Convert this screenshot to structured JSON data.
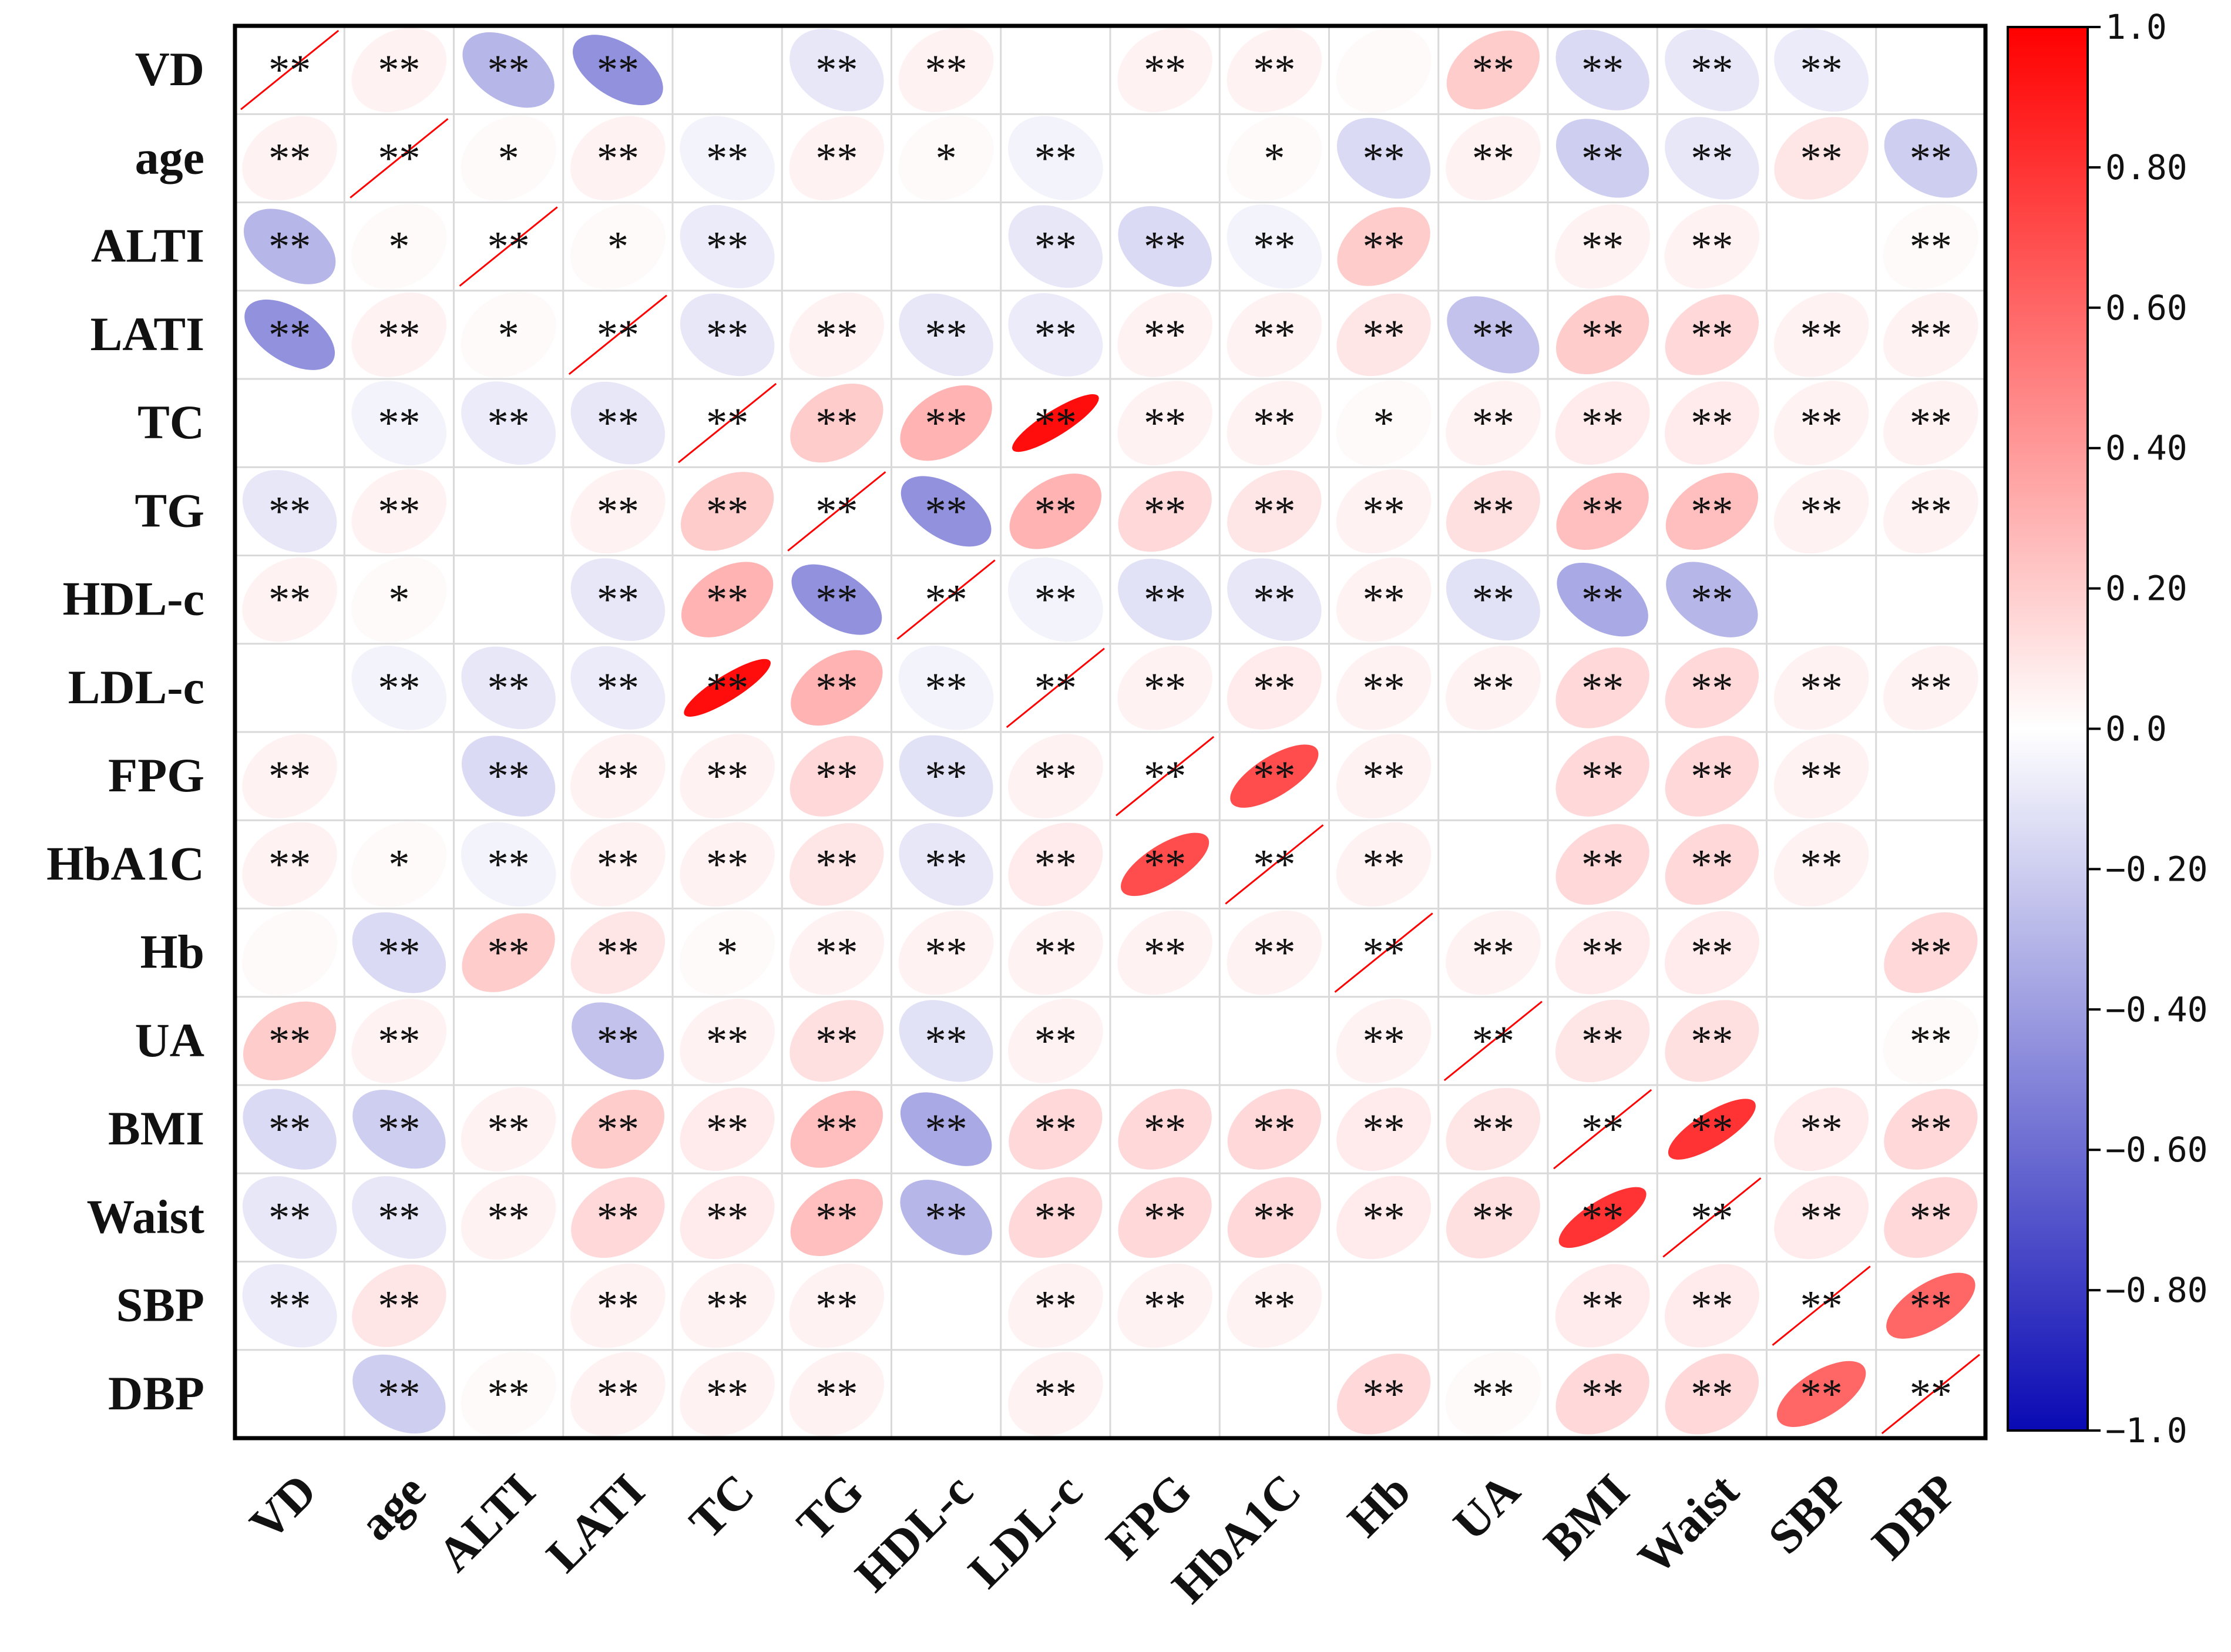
{
  "chart_data": {
    "type": "heatmap",
    "title": "",
    "variables": [
      "VD",
      "age",
      "ALTI",
      "LATI",
      "TC",
      "TG",
      "HDL-c",
      "LDL-c",
      "FPG",
      "HbA1C",
      "Hb",
      "UA",
      "BMI",
      "Waist",
      "SBP",
      "DBP"
    ],
    "matrix": [
      [
        1.0,
        0.05,
        -0.3,
        -0.45,
        0.0,
        -0.1,
        0.05,
        0.0,
        0.05,
        0.05,
        0.02,
        0.2,
        -0.15,
        -0.1,
        -0.08,
        0.0
      ],
      [
        0.05,
        1.0,
        0.02,
        0.05,
        -0.05,
        0.05,
        0.02,
        -0.05,
        0.0,
        0.02,
        -0.15,
        0.05,
        -0.2,
        -0.1,
        0.1,
        -0.2
      ],
      [
        -0.3,
        0.02,
        1.0,
        0.02,
        -0.08,
        0.0,
        0.0,
        -0.1,
        -0.15,
        -0.05,
        0.2,
        0.0,
        0.05,
        0.05,
        0.0,
        0.02
      ],
      [
        -0.45,
        0.05,
        0.02,
        1.0,
        -0.1,
        0.05,
        -0.1,
        -0.08,
        0.05,
        0.05,
        0.1,
        -0.25,
        0.2,
        0.15,
        0.05,
        0.05
      ],
      [
        0.0,
        -0.05,
        -0.08,
        -0.1,
        1.0,
        0.2,
        0.3,
        0.95,
        0.05,
        0.05,
        0.02,
        0.05,
        0.08,
        0.08,
        0.05,
        0.05
      ],
      [
        -0.1,
        0.05,
        0.0,
        0.05,
        0.2,
        1.0,
        -0.45,
        0.3,
        0.15,
        0.1,
        0.05,
        0.12,
        0.25,
        0.25,
        0.05,
        0.05
      ],
      [
        0.05,
        0.02,
        0.0,
        -0.1,
        0.3,
        -0.45,
        1.0,
        -0.05,
        -0.12,
        -0.1,
        0.05,
        -0.12,
        -0.35,
        -0.3,
        0.0,
        0.0
      ],
      [
        0.0,
        -0.05,
        -0.1,
        -0.08,
        0.95,
        0.3,
        -0.05,
        1.0,
        0.05,
        0.08,
        0.05,
        0.05,
        0.15,
        0.15,
        0.05,
        0.05
      ],
      [
        0.05,
        0.0,
        -0.15,
        0.05,
        0.05,
        0.15,
        -0.12,
        0.05,
        1.0,
        0.7,
        0.05,
        0.0,
        0.15,
        0.15,
        0.05,
        0.0
      ],
      [
        0.05,
        0.02,
        -0.05,
        0.05,
        0.05,
        0.1,
        -0.1,
        0.08,
        0.7,
        1.0,
        0.05,
        0.0,
        0.15,
        0.15,
        0.05,
        0.0
      ],
      [
        0.02,
        -0.15,
        0.2,
        0.1,
        0.02,
        0.05,
        0.05,
        0.05,
        0.05,
        0.05,
        1.0,
        0.05,
        0.08,
        0.08,
        0.0,
        0.15
      ],
      [
        0.2,
        0.05,
        0.0,
        -0.25,
        0.05,
        0.12,
        -0.12,
        0.05,
        0.0,
        0.0,
        0.05,
        1.0,
        0.1,
        0.12,
        0.0,
        0.02
      ],
      [
        -0.15,
        -0.2,
        0.05,
        0.2,
        0.08,
        0.25,
        -0.35,
        0.15,
        0.15,
        0.15,
        0.08,
        0.1,
        1.0,
        0.8,
        0.08,
        0.15
      ],
      [
        -0.1,
        -0.1,
        0.05,
        0.15,
        0.08,
        0.25,
        -0.3,
        0.15,
        0.15,
        0.15,
        0.08,
        0.12,
        0.8,
        1.0,
        0.08,
        0.15
      ],
      [
        -0.08,
        0.1,
        0.0,
        0.05,
        0.05,
        0.05,
        0.0,
        0.05,
        0.05,
        0.05,
        0.0,
        0.0,
        0.08,
        0.08,
        1.0,
        0.6
      ],
      [
        0.0,
        -0.2,
        0.02,
        0.05,
        0.05,
        0.05,
        0.0,
        0.05,
        0.0,
        0.0,
        0.15,
        0.02,
        0.15,
        0.15,
        0.6,
        1.0
      ]
    ],
    "significance": [
      [
        "**",
        "**",
        "**",
        "**",
        "",
        "**",
        "**",
        "",
        "**",
        "**",
        "",
        "**",
        "**",
        "**",
        "**",
        ""
      ],
      [
        "**",
        "**",
        "*",
        "**",
        "**",
        "**",
        "*",
        "**",
        "",
        "*",
        "**",
        "**",
        "**",
        "**",
        "**",
        "**"
      ],
      [
        "**",
        "*",
        "**",
        "*",
        "**",
        "",
        "",
        "**",
        "**",
        "**",
        "**",
        "",
        "**",
        "**",
        "",
        "**"
      ],
      [
        "**",
        "**",
        "*",
        "**",
        "**",
        "**",
        "**",
        "**",
        "**",
        "**",
        "**",
        "**",
        "**",
        "**",
        "**",
        "**"
      ],
      [
        "",
        "**",
        "**",
        "**",
        "**",
        "**",
        "**",
        "**",
        "**",
        "**",
        "*",
        "**",
        "**",
        "**",
        "**",
        "**"
      ],
      [
        "**",
        "**",
        "",
        "**",
        "**",
        "**",
        "**",
        "**",
        "**",
        "**",
        "**",
        "**",
        "**",
        "**",
        "**",
        "**"
      ],
      [
        "**",
        "*",
        "",
        "**",
        "**",
        "**",
        "**",
        "**",
        "**",
        "**",
        "**",
        "**",
        "**",
        "**",
        "",
        ""
      ],
      [
        "",
        "**",
        "**",
        "**",
        "**",
        "**",
        "**",
        "**",
        "**",
        "**",
        "**",
        "**",
        "**",
        "**",
        "**",
        "**"
      ],
      [
        "**",
        "",
        "**",
        "**",
        "**",
        "**",
        "**",
        "**",
        "**",
        "**",
        "**",
        "",
        "**",
        "**",
        "**",
        ""
      ],
      [
        "**",
        "*",
        "**",
        "**",
        "**",
        "**",
        "**",
        "**",
        "**",
        "**",
        "**",
        "",
        "**",
        "**",
        "**",
        ""
      ],
      [
        "",
        "**",
        "**",
        "**",
        "*",
        "**",
        "**",
        "**",
        "**",
        "**",
        "**",
        "**",
        "**",
        "**",
        "",
        "**"
      ],
      [
        "**",
        "**",
        "",
        "**",
        "**",
        "**",
        "**",
        "**",
        "",
        "",
        "**",
        "**",
        "**",
        "**",
        "",
        "**"
      ],
      [
        "**",
        "**",
        "**",
        "**",
        "**",
        "**",
        "**",
        "**",
        "**",
        "**",
        "**",
        "**",
        "**",
        "**",
        "**",
        "**"
      ],
      [
        "**",
        "**",
        "**",
        "**",
        "**",
        "**",
        "**",
        "**",
        "**",
        "**",
        "**",
        "**",
        "**",
        "**",
        "**",
        "**"
      ],
      [
        "**",
        "**",
        "",
        "**",
        "**",
        "**",
        "",
        "**",
        "**",
        "**",
        "",
        "",
        "**",
        "**",
        "**",
        "**"
      ],
      [
        "",
        "**",
        "**",
        "**",
        "**",
        "**",
        "",
        "**",
        "",
        "",
        "**",
        "**",
        "**",
        "**",
        "**",
        "**"
      ]
    ],
    "colorbar": {
      "range": [
        -1.0,
        1.0
      ],
      "ticks": [
        "1.0",
        "0.80",
        "0.60",
        "0.40",
        "0.20",
        "0.0",
        "−0.20",
        "−0.40",
        "−0.60",
        "−0.80",
        "−1.0"
      ],
      "low_color": "#0a0ab4",
      "mid_color": "#ffffff",
      "high_color": "#ff0000"
    },
    "grid_line_color": "#d9d9d9",
    "diagonal_line_color": "#ff0000",
    "frame_color": "#000000"
  }
}
